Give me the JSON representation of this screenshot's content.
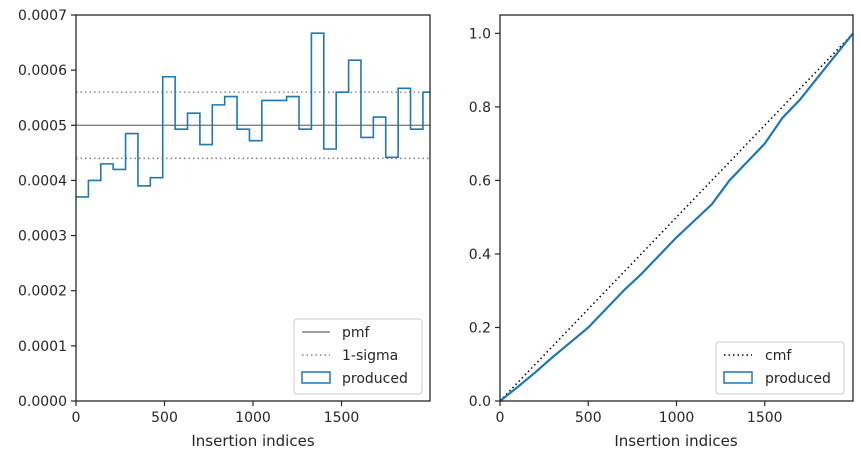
{
  "colors": {
    "produced": "#1f77b4",
    "pmf": "#808080",
    "sigma": "#808080",
    "cmf": "#000000",
    "axes": "#262626"
  },
  "chart_data": [
    {
      "type": "histogram",
      "xlabel": "Insertion indices",
      "ylabel": "",
      "xlim": [
        0,
        2000
      ],
      "ylim": [
        0,
        0.0007
      ],
      "xticks": [
        0,
        500,
        1000,
        1500
      ],
      "xtick_labels": [
        "0",
        "500",
        "1000",
        "1500"
      ],
      "yticks": [
        0,
        0.0001,
        0.0002,
        0.0003,
        0.0004,
        0.0005,
        0.0006,
        0.0007
      ],
      "ytick_labels": [
        "0.0000",
        "0.0001",
        "0.0002",
        "0.0003",
        "0.0004",
        "0.0005",
        "0.0006",
        "0.0007"
      ],
      "bin_edges": [
        0,
        70,
        140,
        210,
        280,
        350,
        420,
        490,
        560,
        630,
        700,
        770,
        840,
        910,
        980,
        1050,
        1120,
        1190,
        1260,
        1330,
        1400,
        1470,
        1540,
        1610,
        1680,
        1750,
        1820,
        1890,
        1960,
        2000
      ],
      "series": [
        {
          "name": "produced",
          "style": "step",
          "values": [
            0.00037,
            0.0004,
            0.00043,
            0.00042,
            0.000485,
            0.00039,
            0.000405,
            0.000588,
            0.000493,
            0.000522,
            0.000465,
            0.000537,
            0.000552,
            0.000493,
            0.000472,
            0.000545,
            0.000545,
            0.000552,
            0.000493,
            0.000667,
            0.000457,
            0.00056,
            0.000618,
            0.000478,
            0.000515,
            0.000442,
            0.000567,
            0.000493,
            0.00056
          ]
        },
        {
          "name": "pmf",
          "style": "hline",
          "value": 0.0005
        },
        {
          "name": "1-sigma",
          "style": "hline-dotted",
          "values": [
            0.00044,
            0.00056
          ]
        }
      ],
      "legend": {
        "position": "bottom-right",
        "entries": [
          "pmf",
          "1-sigma",
          "produced"
        ]
      }
    },
    {
      "type": "line",
      "xlabel": "Insertion indices",
      "ylabel": "",
      "xlim": [
        0,
        2000
      ],
      "ylim": [
        0,
        1.05
      ],
      "xticks": [
        0,
        500,
        1000,
        1500
      ],
      "xtick_labels": [
        "0",
        "500",
        "1000",
        "1500"
      ],
      "yticks": [
        0,
        0.2,
        0.4,
        0.6,
        0.8,
        1.0
      ],
      "ytick_labels": [
        "0.0",
        "0.2",
        "0.4",
        "0.6",
        "0.8",
        "1.0"
      ],
      "series": [
        {
          "name": "cmf",
          "style": "dotted",
          "x": [
            0,
            2000
          ],
          "y": [
            0,
            1.0
          ]
        },
        {
          "name": "produced",
          "style": "step",
          "x": [
            0,
            100,
            200,
            300,
            400,
            500,
            600,
            700,
            800,
            900,
            1000,
            1100,
            1200,
            1300,
            1400,
            1500,
            1600,
            1700,
            1800,
            1900,
            2000
          ],
          "y": [
            0,
            0.038,
            0.078,
            0.12,
            0.16,
            0.2,
            0.25,
            0.3,
            0.345,
            0.395,
            0.445,
            0.49,
            0.535,
            0.6,
            0.65,
            0.7,
            0.77,
            0.82,
            0.88,
            0.94,
            1.0
          ]
        }
      ],
      "legend": {
        "position": "bottom-right",
        "entries": [
          "cmf",
          "produced"
        ]
      }
    }
  ]
}
